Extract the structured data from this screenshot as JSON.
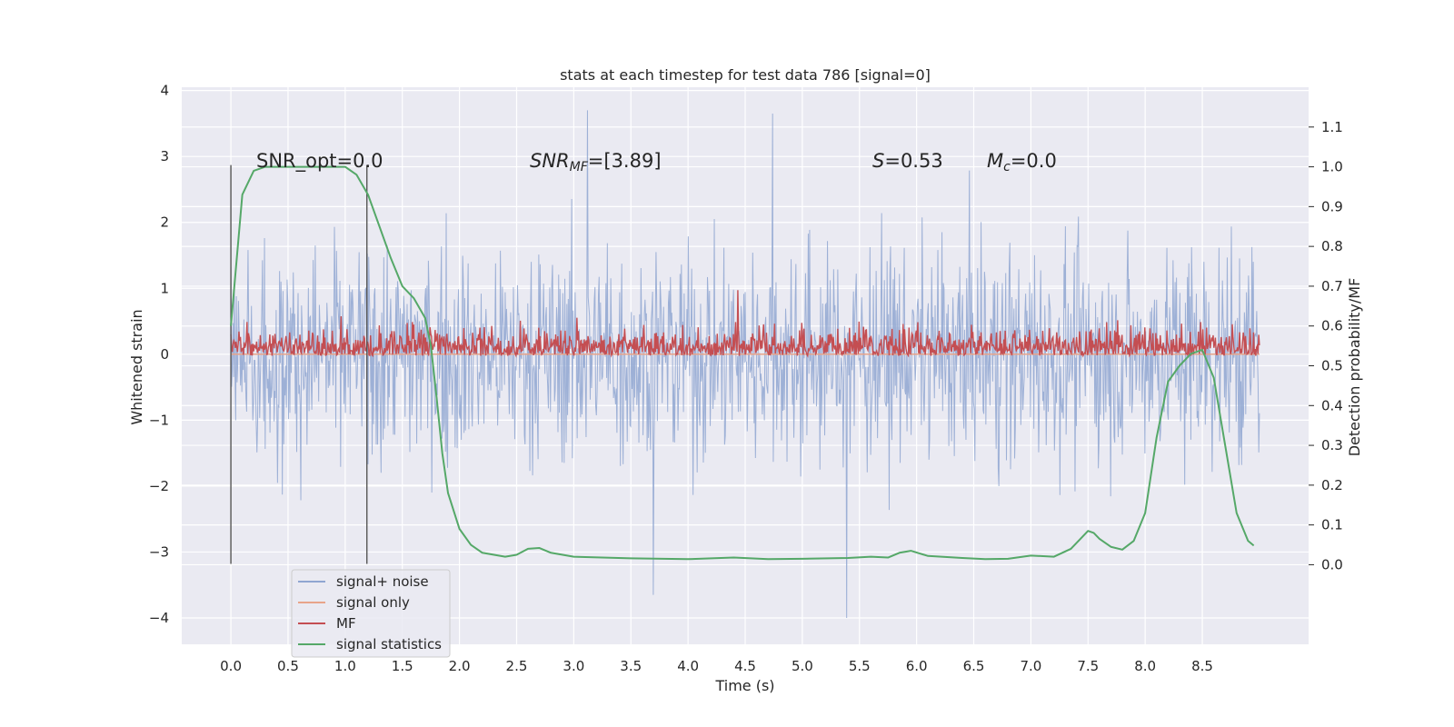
{
  "chart_data": {
    "type": "line",
    "title": "stats at each timestep for test data 786 [signal=0]",
    "xlabel": "Time (s)",
    "ylabel": "Whitened strain",
    "y2label": "Detection probability/MF",
    "xlim": [
      -0.43,
      9.43
    ],
    "ylim": [
      -4.4,
      4.05
    ],
    "y2lim": [
      -0.2,
      1.2
    ],
    "xticks": [
      0.0,
      0.5,
      1.0,
      1.5,
      2.0,
      2.5,
      3.0,
      3.5,
      4.0,
      4.5,
      5.0,
      5.5,
      6.0,
      6.5,
      7.0,
      7.5,
      8.0,
      8.5
    ],
    "xtick_labels": [
      "0.0",
      "0.5",
      "1.0",
      "1.5",
      "2.0",
      "2.5",
      "3.0",
      "3.5",
      "4.0",
      "4.5",
      "5.0",
      "5.5",
      "6.0",
      "6.5",
      "7.0",
      "7.5",
      "8.0",
      "8.5"
    ],
    "yticks": [
      -4,
      -3,
      -2,
      -1,
      0,
      1,
      2,
      3,
      4
    ],
    "ytick_labels": [
      "−4",
      "−3",
      "−2",
      "−1",
      "0",
      "1",
      "2",
      "3",
      "4"
    ],
    "y2ticks": [
      0.0,
      0.1,
      0.2,
      0.3,
      0.4,
      0.5,
      0.6,
      0.7,
      0.8,
      0.9,
      1.0,
      1.1
    ],
    "y2tick_labels": [
      "0.0",
      "0.1",
      "0.2",
      "0.3",
      "0.4",
      "0.5",
      "0.6",
      "0.7",
      "0.8",
      "0.9",
      "1.0",
      "1.1"
    ],
    "grid": true,
    "legend_position": "lower-left",
    "vertical_markers": [
      0.0,
      1.19
    ],
    "annotations": {
      "snr_opt": "SNR_opt=0.0",
      "snr_mf_main": "SNR",
      "snr_mf_sub": "MF",
      "snr_mf_value": "=[3.89]",
      "s_main": "S",
      "s_value": "=0.53",
      "mc_main": "M",
      "mc_sub": "c",
      "mc_value": "=0.0"
    },
    "series": [
      {
        "name": "signal+ noise",
        "color": "#8fa6d1",
        "axis": "left",
        "kind": "noise",
        "x_range": [
          0.0,
          9.0
        ],
        "typical_amplitude": 1.6,
        "extremes": [
          3.7,
          -4.0
        ]
      },
      {
        "name": "signal only",
        "color": "#e8a48a",
        "axis": "left",
        "kind": "constant",
        "x": [
          0.0,
          9.0
        ],
        "y": [
          0.0,
          0.0
        ]
      },
      {
        "name": "MF",
        "color": "#c44e52",
        "axis": "right",
        "kind": "noise_band",
        "x_range": [
          0.0,
          9.0
        ],
        "baseline": 0.525,
        "band": [
          0.525,
          0.67
        ],
        "peak": 0.69
      },
      {
        "name": "signal statistics",
        "color": "#55a868",
        "axis": "right",
        "kind": "line",
        "x": [
          0.0,
          0.1,
          0.2,
          0.3,
          0.5,
          0.8,
          1.0,
          1.1,
          1.2,
          1.3,
          1.4,
          1.5,
          1.6,
          1.7,
          1.75,
          1.8,
          1.85,
          1.9,
          2.0,
          2.1,
          2.2,
          2.4,
          2.5,
          2.6,
          2.7,
          2.8,
          3.0,
          3.5,
          4.0,
          4.4,
          4.7,
          5.0,
          5.4,
          5.6,
          5.75,
          5.85,
          5.95,
          6.1,
          6.4,
          6.6,
          6.8,
          7.0,
          7.2,
          7.35,
          7.45,
          7.5,
          7.55,
          7.6,
          7.7,
          7.8,
          7.9,
          8.0,
          8.1,
          8.2,
          8.3,
          8.4,
          8.5,
          8.6,
          8.7,
          8.8,
          8.9,
          8.95
        ],
        "y": [
          0.6,
          0.93,
          0.99,
          1.0,
          1.0,
          1.0,
          1.0,
          0.98,
          0.93,
          0.85,
          0.77,
          0.7,
          0.67,
          0.62,
          0.55,
          0.42,
          0.28,
          0.18,
          0.09,
          0.05,
          0.03,
          0.02,
          0.025,
          0.04,
          0.042,
          0.03,
          0.02,
          0.016,
          0.014,
          0.018,
          0.014,
          0.015,
          0.017,
          0.02,
          0.018,
          0.03,
          0.035,
          0.022,
          0.017,
          0.014,
          0.015,
          0.023,
          0.02,
          0.04,
          0.07,
          0.085,
          0.08,
          0.065,
          0.045,
          0.038,
          0.06,
          0.13,
          0.32,
          0.46,
          0.5,
          0.53,
          0.54,
          0.47,
          0.3,
          0.13,
          0.06,
          0.048
        ]
      }
    ]
  }
}
